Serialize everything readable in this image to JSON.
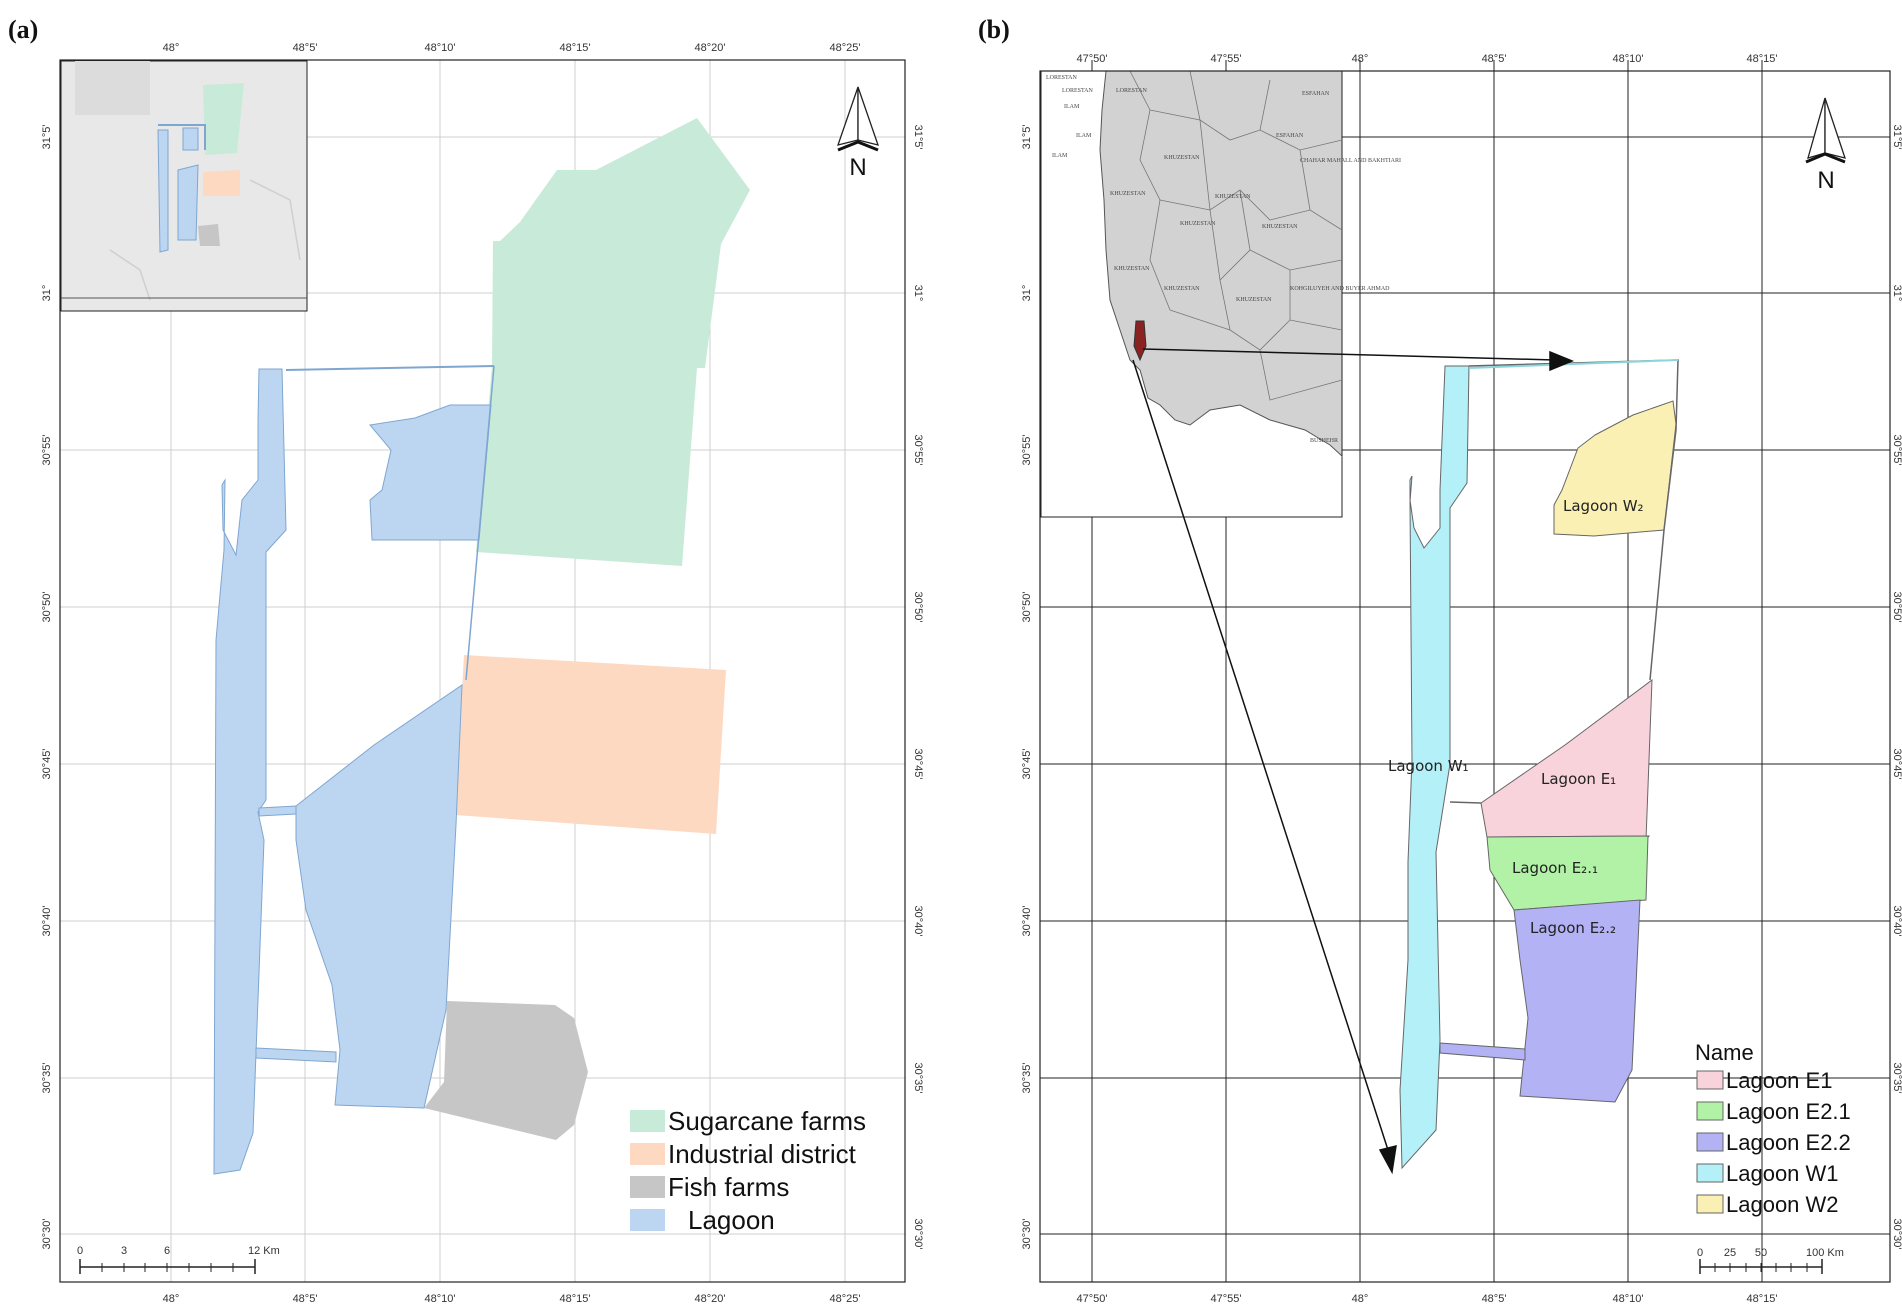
{
  "panel_a": {
    "label": "(a)",
    "top_ticks": [
      "48°",
      "48°5'",
      "48°10'",
      "48°15'",
      "48°20'",
      "48°25'"
    ],
    "bottom_ticks": [
      "48°",
      "48°5'",
      "48°10'",
      "48°15'",
      "48°20'",
      "48°25'"
    ],
    "left_ticks": [
      "31°5'",
      "31°",
      "30°55'",
      "30°50'",
      "30°45'",
      "30°40'",
      "30°35'",
      "30°30'"
    ],
    "right_ticks": [
      "31°5'",
      "31°",
      "30°55'",
      "30°50'",
      "30°45'",
      "30°40'",
      "30°35'",
      "30°30'"
    ],
    "north": "N",
    "scale": {
      "labels": [
        "0",
        "3",
        "6",
        "12 Km"
      ]
    },
    "legend": [
      {
        "label": "Sugarcane farms",
        "color": "#c8ead9"
      },
      {
        "label": "Industrial district",
        "color": "#fdd9c2"
      },
      {
        "label": "Fish farms",
        "color": "#c6c6c6"
      },
      {
        "label": "Lagoon",
        "color": "#bcd6f2"
      }
    ]
  },
  "panel_b": {
    "label": "(b)",
    "top_ticks": [
      "47°50'",
      "47°55'",
      "48°",
      "48°5'",
      "48°10'",
      "48°15'"
    ],
    "bottom_ticks": [
      "47°50'",
      "47°55'",
      "48°",
      "48°5'",
      "48°10'",
      "48°15'"
    ],
    "left_ticks": [
      "31°5'",
      "31°",
      "30°55'",
      "30°50'",
      "30°45'",
      "30°40'",
      "30°35'",
      "30°30'"
    ],
    "right_ticks": [
      "31°5'",
      "31°",
      "30°55'",
      "30°50'",
      "30°45'",
      "30°40'",
      "30°35'",
      "30°30'"
    ],
    "north": "N",
    "scale": {
      "labels": [
        "0",
        "25",
        "50",
        "100 Km"
      ]
    },
    "region_labels": {
      "w2": "Lagoon W₂",
      "w1": "Lagoon W₁",
      "e1": "Lagoon E₁",
      "e21": "Lagoon E₂.₁",
      "e22": "Lagoon E₂.₂"
    },
    "legend_title": "Name",
    "legend": [
      {
        "label": "Lagoon E1",
        "color": "#f8d3dc"
      },
      {
        "label": "Lagoon E2.1",
        "color": "#b2f2a6"
      },
      {
        "label": "Lagoon E2.2",
        "color": "#b2b2f5"
      },
      {
        "label": "Lagoon W1",
        "color": "#b4f0f8"
      },
      {
        "label": "Lagoon W2",
        "color": "#fbf0b4"
      }
    ],
    "inset_labels": [
      "LORESTAN",
      "LORESTAN",
      "LORESTAN",
      "ESFAHAN",
      "ILAM",
      "ILAM",
      "ILAM",
      "KHUZESTAN",
      "KHUZESTAN",
      "KHUZESTAN",
      "KHUZESTAN",
      "KHUZESTAN",
      "KHUZESTAN",
      "KHUZESTAN",
      "KHUZESTAN",
      "ESFAHAN",
      "CHAHAR MAHALL AND BAKHTIARI",
      "KOHGILUYEH AND BUYER AHMAD",
      "BUSHEHR"
    ]
  }
}
